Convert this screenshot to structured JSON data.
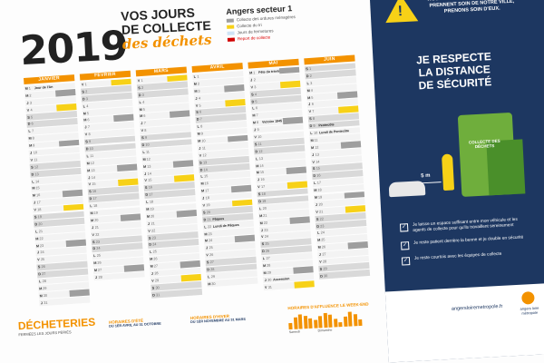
{
  "header": {
    "year": "2019",
    "title_line1": "VOS JOURS",
    "title_line2": "DE COLLECTE",
    "title_line3": "des déchets"
  },
  "legend": {
    "sector": "Angers secteur 1",
    "items": [
      {
        "label": "Collecte des ordures ménagères",
        "color": "#9e9e9e"
      },
      {
        "label": "Collecte du tri",
        "color": "#f7d117"
      },
      {
        "label": "Jours de fermetures",
        "color": "#cfe3f5"
      },
      {
        "label": "Report de collecte",
        "color": "#d00000"
      }
    ]
  },
  "calendar": {
    "months": [
      {
        "name": "JANVIER",
        "labels": [
          {
            "day": 1,
            "text": "Jour de l'An"
          }
        ]
      },
      {
        "name": "FÉVRIER",
        "labels": []
      },
      {
        "name": "MARS",
        "labels": []
      },
      {
        "name": "AVRIL",
        "labels": [
          {
            "day": 21,
            "text": "Pâques"
          },
          {
            "day": 22,
            "text": "Lundi de Pâques"
          }
        ]
      },
      {
        "name": "MAI",
        "labels": [
          {
            "day": 1,
            "text": "Fête du travail"
          },
          {
            "day": 8,
            "text": "Victoire 1945"
          },
          {
            "day": 30,
            "text": "Ascension"
          }
        ]
      },
      {
        "name": "JUIN",
        "labels": [
          {
            "day": 9,
            "text": "Pentecôte"
          },
          {
            "day": 10,
            "text": "Lundi de Pentecôte"
          }
        ]
      }
    ]
  },
  "panel": {
    "note": "TRANSPORTS TOUTE SÉCURITÉ, ILS PRENNENT SOIN DE NOTRE VILLE, PRENONS SOIN D'EUX.",
    "headline_1": "JE RESPECTE",
    "headline_2": "LA DISTANCE",
    "headline_3": "DE SÉCURITÉ",
    "truck_label": "COLLECTE DES DÉCHETS",
    "distance": "5 m",
    "tips": [
      "Je laisse un espace suffisant entre mon véhicule et les agents de collecte pour qu'ils travaillent sereinement",
      "Je reste patient derrière la benne et je double en sécurité",
      "Je reste courtois avec les équipes de collecte"
    ],
    "website": "angersloiremetropole.fr",
    "logo_text": "angers loire métropole"
  },
  "footer": {
    "decheteries_title": "DÉCHETERIES",
    "decheteries_sub": "FERMÉES LES JOURS FÉRIÉS",
    "summer_title": "HORAIRES D'ÉTÉ",
    "summer_sub": "DU 1ER AVRIL AU 31 OCTOBRE",
    "winter_title": "HORAIRES D'HIVER",
    "winter_sub": "DU 1ER NOVEMBRE AU 31 MARS",
    "affluence_title": "HORAIRES D'AFFLUENCE LE WEEK-END",
    "affluence_days": [
      "Samedi",
      "Dimanche"
    ],
    "affluence_values": [
      0.4,
      0.7,
      0.9,
      0.8,
      0.6,
      0.5,
      0.7,
      0.9,
      0.8,
      0.5,
      0.3,
      0.6,
      0.9,
      0.7,
      0.4
    ]
  },
  "colors": {
    "accent": "#f39200",
    "trash": "#9e9e9e",
    "recycling": "#f7d117",
    "navy": "#1d3761"
  }
}
